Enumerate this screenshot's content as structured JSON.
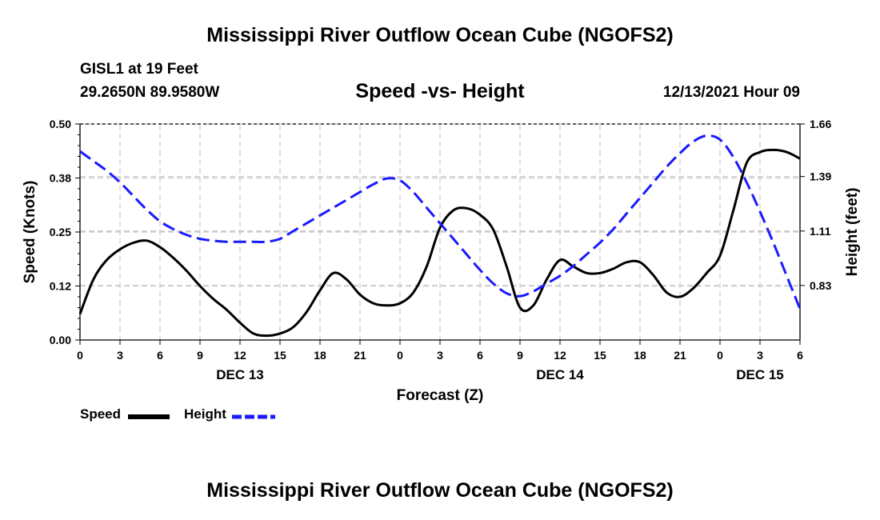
{
  "header": {
    "title": "Mississippi River Outflow Ocean Cube (NGOFS2)",
    "station": "GISL1 at 19 Feet",
    "coords": "29.2650N  89.9580W",
    "subtitle": "Speed -vs- Height",
    "datetime": "12/13/2021 Hour 09"
  },
  "footer": {
    "title": "Mississippi River Outflow Ocean Cube (NGOFS2)"
  },
  "legend": {
    "speed_label": "Speed",
    "height_label": "Height"
  },
  "colors": {
    "speed": "#000000",
    "height": "#1a1aff",
    "grid": "#c8c8c8"
  },
  "chart_data": {
    "type": "line",
    "title": "Speed -vs- Height",
    "xlabel": "Forecast (Z)",
    "ylabel": "Speed (Knots)",
    "y2label": "Height (feet)",
    "x_range_hours": [
      0,
      54
    ],
    "x_ticks": [
      {
        "hour": 0,
        "label": "0"
      },
      {
        "hour": 3,
        "label": "3"
      },
      {
        "hour": 6,
        "label": "6"
      },
      {
        "hour": 9,
        "label": "9"
      },
      {
        "hour": 12,
        "label": "12"
      },
      {
        "hour": 15,
        "label": "15"
      },
      {
        "hour": 18,
        "label": "18"
      },
      {
        "hour": 21,
        "label": "21"
      },
      {
        "hour": 24,
        "label": "0"
      },
      {
        "hour": 27,
        "label": "3"
      },
      {
        "hour": 30,
        "label": "6"
      },
      {
        "hour": 33,
        "label": "9"
      },
      {
        "hour": 36,
        "label": "12"
      },
      {
        "hour": 39,
        "label": "15"
      },
      {
        "hour": 42,
        "label": "18"
      },
      {
        "hour": 45,
        "label": "21"
      },
      {
        "hour": 48,
        "label": "0"
      },
      {
        "hour": 51,
        "label": "3"
      },
      {
        "hour": 54,
        "label": "6"
      }
    ],
    "day_labels": [
      {
        "hour": 12,
        "label": "DEC 13"
      },
      {
        "hour": 36,
        "label": "DEC 14"
      },
      {
        "hour": 51,
        "label": "DEC 15"
      }
    ],
    "ylim": [
      0,
      0.5
    ],
    "y_ticks": [
      "0.00",
      "0.12",
      "0.25",
      "0.38",
      "0.50"
    ],
    "y2lim": [
      0.55,
      1.66
    ],
    "y2_ticks": [
      "0.83",
      "1.11",
      "1.39",
      "1.66"
    ],
    "series": [
      {
        "name": "Speed",
        "axis": "left",
        "style": "solid",
        "x": [
          0,
          1,
          2,
          3,
          4,
          5,
          6,
          7,
          8,
          9,
          10,
          11,
          12,
          13,
          14,
          15,
          16,
          17,
          18,
          19,
          20,
          21,
          22,
          23,
          24,
          25,
          26,
          27,
          28,
          29,
          30,
          31,
          32,
          33,
          34,
          35,
          36,
          37,
          38,
          39,
          40,
          41,
          42,
          43,
          44,
          45,
          46,
          47,
          48,
          49,
          50,
          51,
          52,
          53,
          54
        ],
        "values": [
          0.06,
          0.14,
          0.185,
          0.21,
          0.225,
          0.23,
          0.215,
          0.19,
          0.16,
          0.125,
          0.095,
          0.07,
          0.04,
          0.015,
          0.01,
          0.015,
          0.03,
          0.065,
          0.115,
          0.155,
          0.14,
          0.105,
          0.085,
          0.08,
          0.085,
          0.11,
          0.17,
          0.26,
          0.3,
          0.305,
          0.29,
          0.255,
          0.17,
          0.075,
          0.08,
          0.14,
          0.185,
          0.17,
          0.155,
          0.155,
          0.165,
          0.18,
          0.18,
          0.15,
          0.11,
          0.1,
          0.12,
          0.155,
          0.195,
          0.3,
          0.41,
          0.435,
          0.44,
          0.435,
          0.42
        ]
      },
      {
        "name": "Height",
        "axis": "right",
        "style": "dashed",
        "x": [
          0,
          1,
          2,
          3,
          4,
          5,
          6,
          7,
          8,
          9,
          10,
          11,
          12,
          13,
          14,
          15,
          16,
          17,
          18,
          19,
          20,
          21,
          22,
          23,
          24,
          25,
          26,
          27,
          28,
          29,
          30,
          31,
          32,
          33,
          34,
          35,
          36,
          37,
          38,
          39,
          40,
          41,
          42,
          43,
          44,
          45,
          46,
          47,
          48,
          49,
          50,
          51,
          52,
          53,
          54
        ],
        "values": [
          1.52,
          1.47,
          1.42,
          1.36,
          1.29,
          1.22,
          1.16,
          1.12,
          1.09,
          1.07,
          1.06,
          1.055,
          1.055,
          1.055,
          1.055,
          1.07,
          1.11,
          1.15,
          1.19,
          1.23,
          1.27,
          1.31,
          1.35,
          1.38,
          1.37,
          1.31,
          1.23,
          1.15,
          1.07,
          0.99,
          0.91,
          0.84,
          0.79,
          0.775,
          0.8,
          0.84,
          0.88,
          0.93,
          0.99,
          1.05,
          1.12,
          1.2,
          1.28,
          1.36,
          1.44,
          1.51,
          1.57,
          1.6,
          1.58,
          1.49,
          1.36,
          1.21,
          1.05,
          0.88,
          0.71
        ]
      }
    ]
  }
}
